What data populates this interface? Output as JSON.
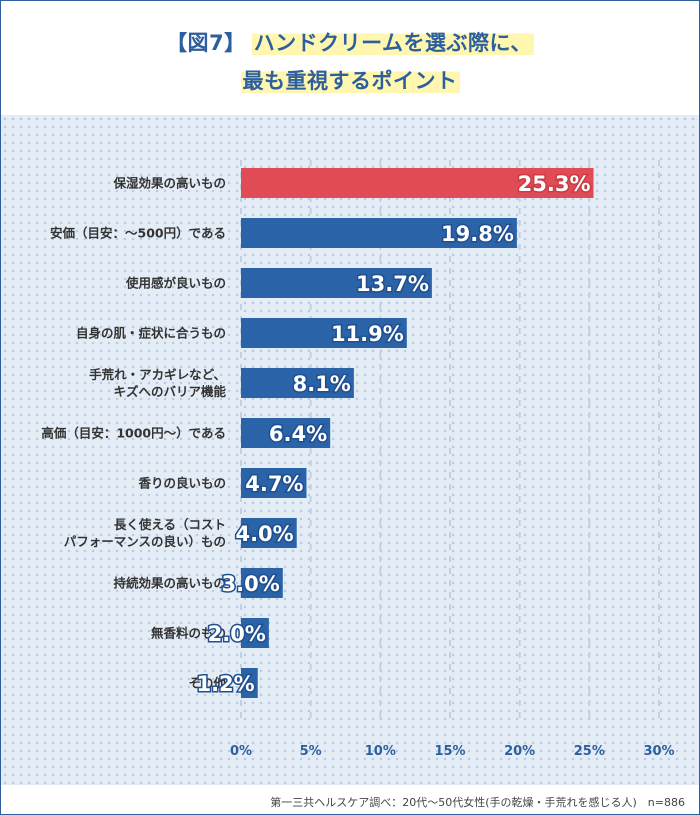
{
  "header": {
    "tag": "【図7】",
    "title_line1": "ハンドクリームを選ぶ際に、",
    "title_line2": "最も重視するポイント"
  },
  "colors": {
    "highlight_bar": "#e04b55",
    "bar": "#2b63a8",
    "accent": "#2d5f9e"
  },
  "chart_data": {
    "type": "bar",
    "orientation": "horizontal",
    "categories": [
      "保湿効果の高いもの",
      "安価（目安：～500円）である",
      "使用感が良いもの",
      "自身の肌・症状に合うもの",
      "手荒れ・アカギレなど、\nキズへのバリア機能",
      "高価（目安：1000円～）である",
      "香りの良いもの",
      "長く使える（コスト\nパフォーマンスの良い）もの",
      "持続効果の高いもの",
      "無香料のもの",
      "その他"
    ],
    "values": [
      25.3,
      19.8,
      13.7,
      11.9,
      8.1,
      6.4,
      4.7,
      4.0,
      3.0,
      2.0,
      1.2
    ],
    "value_labels": [
      "25.3%",
      "19.8%",
      "13.7%",
      "11.9%",
      "8.1%",
      "6.4%",
      "4.7%",
      "4.0%",
      "3.0%",
      "2.0%",
      "1.2%"
    ],
    "highlight_index": 0,
    "xlim": [
      0,
      30
    ],
    "xticks": [
      "0%",
      "5%",
      "10%",
      "15%",
      "20%",
      "25%",
      "30%"
    ],
    "grid": true,
    "source_note": "第一三共ヘルスケア調べ：20代～50代女性(手の乾燥・手荒れを感じる人)　n=886"
  }
}
